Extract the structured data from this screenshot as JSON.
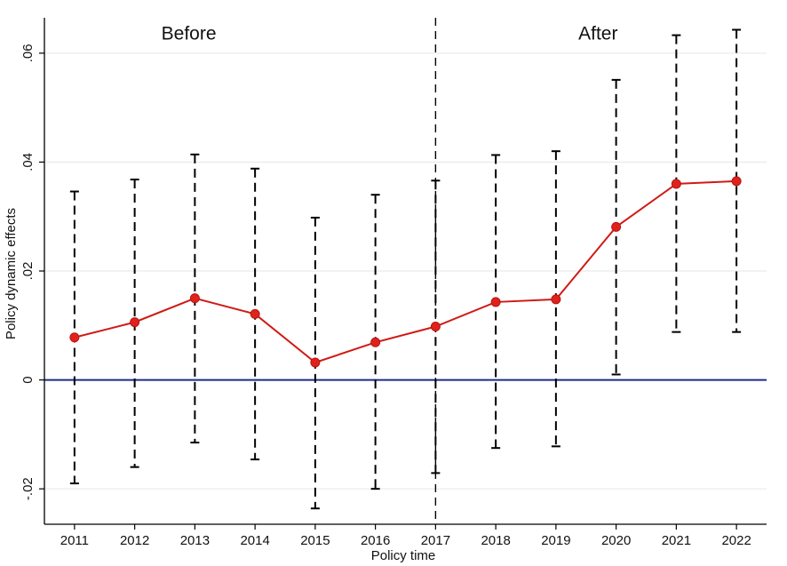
{
  "chart_data": {
    "type": "line",
    "title": "",
    "xlabel": "Policy time",
    "ylabel": "Policy dynamic effects",
    "x": [
      2011,
      2012,
      2013,
      2014,
      2015,
      2016,
      2017,
      2018,
      2019,
      2020,
      2021,
      2022
    ],
    "x_tick_labels": [
      "2011",
      "2012",
      "2013",
      "2014",
      "2015",
      "2016",
      "2017",
      "2018",
      "2019",
      "2020",
      "2021",
      "2022"
    ],
    "y_ticks": [
      -0.02,
      0,
      0.02,
      0.04,
      0.06
    ],
    "y_tick_labels": [
      "-.02",
      "0",
      ".02",
      ".04",
      ".06"
    ],
    "ylim": [
      -0.0265,
      0.0665
    ],
    "xlim": [
      2010.5,
      2022.5
    ],
    "grid": true,
    "series": [
      {
        "values": [
          0.0078,
          0.0106,
          0.015,
          0.0121,
          0.0032,
          0.0069,
          0.0098,
          0.0143,
          0.0148,
          0.0281,
          0.036,
          0.0365
        ],
        "ci_lower": [
          -0.019,
          -0.016,
          -0.0115,
          -0.0146,
          -0.0236,
          -0.02,
          -0.0171,
          -0.0125,
          -0.0122,
          0.001,
          0.0088,
          0.0088
        ],
        "ci_upper": [
          0.0346,
          0.0368,
          0.0414,
          0.0388,
          0.0298,
          0.034,
          0.0366,
          0.0413,
          0.042,
          0.0551,
          0.0633,
          0.0643
        ],
        "color": "#e0221c"
      }
    ],
    "reference_line": {
      "y": 0,
      "color": "#1a2f8a"
    },
    "event_line": {
      "x": 2017
    },
    "annotations": [
      {
        "text": "Before",
        "x": 2012.9,
        "y": 0.0625
      },
      {
        "text": "After",
        "x": 2019.7,
        "y": 0.0625
      }
    ],
    "colors": {
      "line": "#d01a14",
      "marker": "#e0221c",
      "zero_line": "#1a2f8a",
      "ci": "#000000",
      "grid": "#e6e6e6"
    }
  }
}
